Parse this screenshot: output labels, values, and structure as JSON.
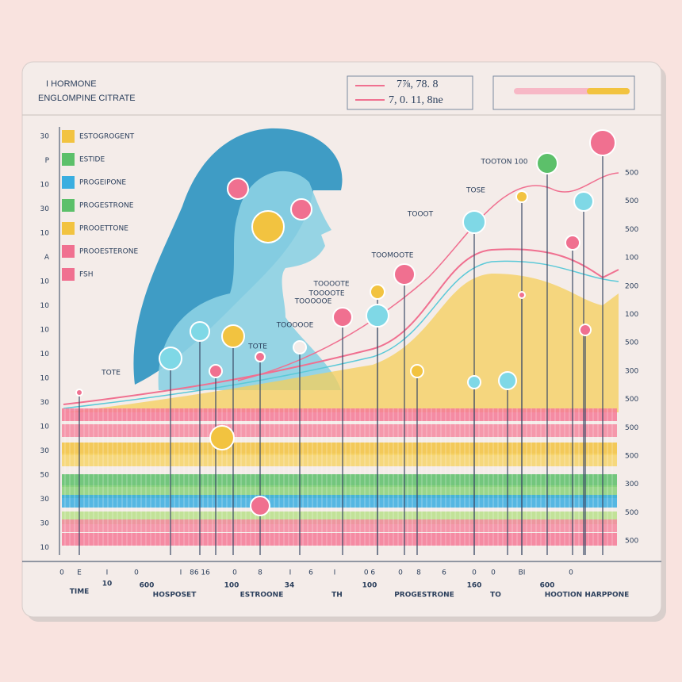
{
  "header": {
    "title": "I HORMONE",
    "subtitle": "ENGLOMPINE CITRATE",
    "readout": [
      "7⅞, 78. 8",
      "7, 0. 11, 8ne"
    ]
  },
  "legend": [
    "ESTOGROGENT",
    "ESTIDE",
    "PROGEIPONE",
    "PROGESTRONE",
    "PROOETTONE",
    "PROOESTERONE",
    "FSH"
  ],
  "left_axis": [
    "30",
    "P",
    "10",
    "30",
    "10",
    "A",
    "10",
    "10",
    "10",
    "10",
    "10",
    "30",
    "10",
    "30",
    "50",
    "30",
    "30",
    "10"
  ],
  "right_axis": [
    "500",
    "500",
    "500",
    "100",
    "200",
    "100",
    "500",
    "300",
    "500",
    "500",
    "500",
    "300",
    "500",
    "500"
  ],
  "bottom_ticks": [
    "0",
    "E",
    "I",
    "0",
    "I",
    "86 16",
    "0",
    "8",
    "I",
    "6",
    "I",
    "0 6",
    "0",
    "8",
    "6",
    "0",
    "0",
    "BI",
    "0"
  ],
  "bottom_labels": [
    "TIME",
    "10",
    "600",
    "HOSPOSET",
    "100",
    "ESTROONE",
    "34",
    "TH",
    "100",
    "PROGESTRONE",
    "160",
    "TO",
    "600",
    "HOOTION HARPPONE"
  ],
  "callouts": [
    "TOOTON 100",
    "TOSE",
    "TOOOT",
    "TOOMOOTE",
    "TOOOOTE",
    "TOOOOTE",
    "TOOOOOE",
    "TOOOOOE",
    "TOTE",
    "TOTE"
  ]
}
